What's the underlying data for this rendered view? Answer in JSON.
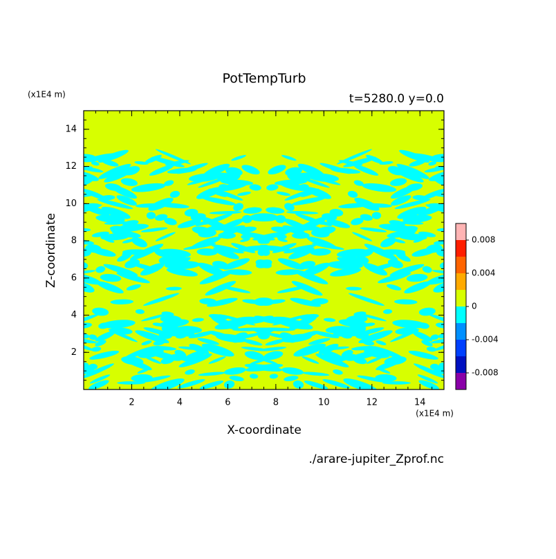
{
  "chart_data": {
    "type": "contour",
    "title": "PotTempTurb",
    "subtitle": "t=5280.0 y=0.0",
    "x_label": "X-coordinate",
    "y_label": "Z-coordinate",
    "x_unit": "(x1E4 m)",
    "y_unit": "(x1E4 m)",
    "source": "./arare-jupiter_Zprof.nc",
    "xlim": [
      0,
      15
    ],
    "xticks": [
      2,
      4,
      6,
      8,
      10,
      12,
      14
    ],
    "ylim": [
      0,
      15
    ],
    "yticks": [
      2,
      4,
      6,
      8,
      10,
      12,
      14
    ],
    "colorbar": {
      "lim": [
        -0.01,
        0.01
      ],
      "ticks": [
        -0.008,
        -0.004,
        0,
        0.004,
        0.008
      ],
      "levels": [
        -0.01,
        -0.008,
        -0.006,
        -0.004,
        -0.002,
        0,
        0.002,
        0.004,
        0.006,
        0.008,
        0.01
      ],
      "colors": [
        "#8a00a8",
        "#0010c0",
        "#0040ff",
        "#0090ff",
        "#00ffff",
        "#d7ff00",
        "#ffaa00",
        "#ff6400",
        "#ff1e00",
        "#ffb4b4"
      ]
    }
  }
}
